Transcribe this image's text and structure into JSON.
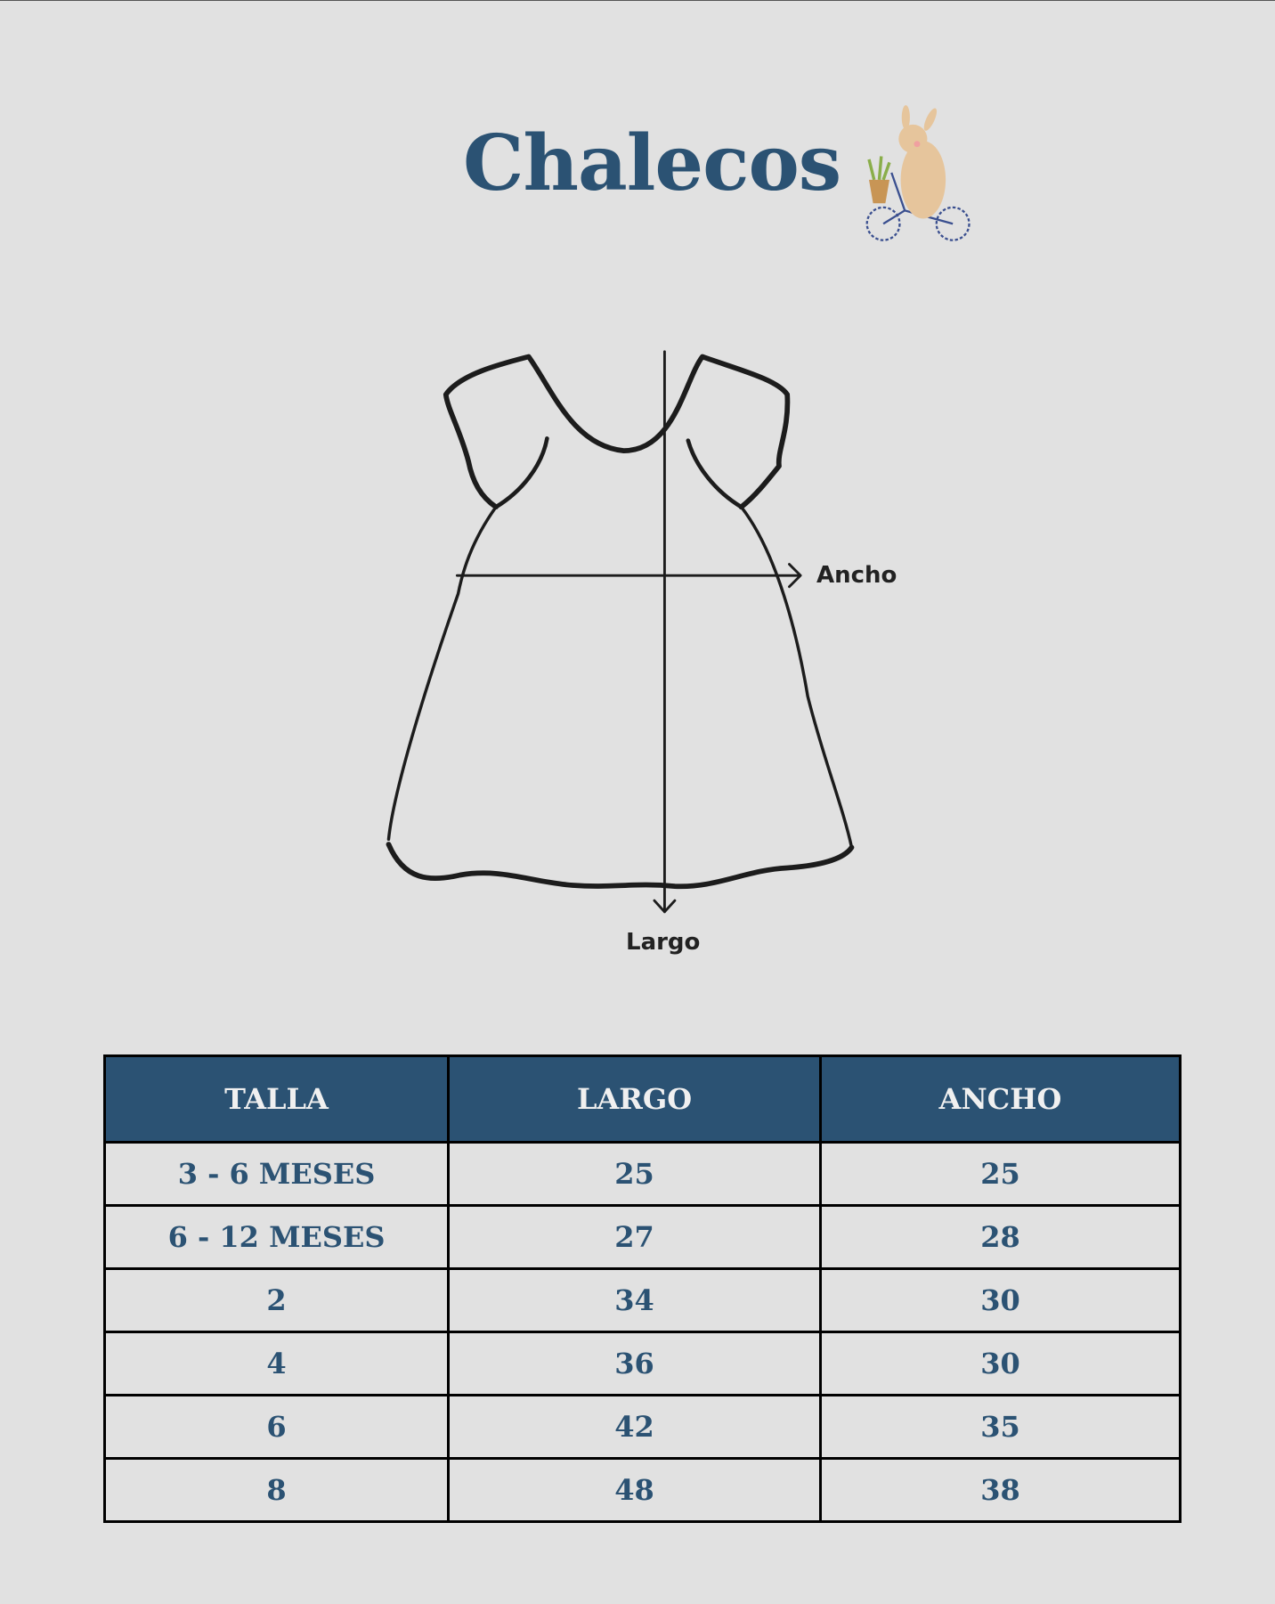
{
  "title": "Chalecos",
  "diagram": {
    "width_label": "Ancho",
    "length_label": "Largo",
    "illustration": "bunny-on-bicycle"
  },
  "table": {
    "headers": [
      "TALLA",
      "LARGO",
      "ANCHO"
    ],
    "rows": [
      [
        "3 - 6 MESES",
        "25",
        "25"
      ],
      [
        "6 - 12 MESES",
        "27",
        "28"
      ],
      [
        "2",
        "34",
        "30"
      ],
      [
        "4",
        "36",
        "30"
      ],
      [
        "6",
        "42",
        "35"
      ],
      [
        "8",
        "48",
        "38"
      ]
    ]
  },
  "colors": {
    "accent": "#2b5273",
    "background": "#e1e1e1"
  }
}
